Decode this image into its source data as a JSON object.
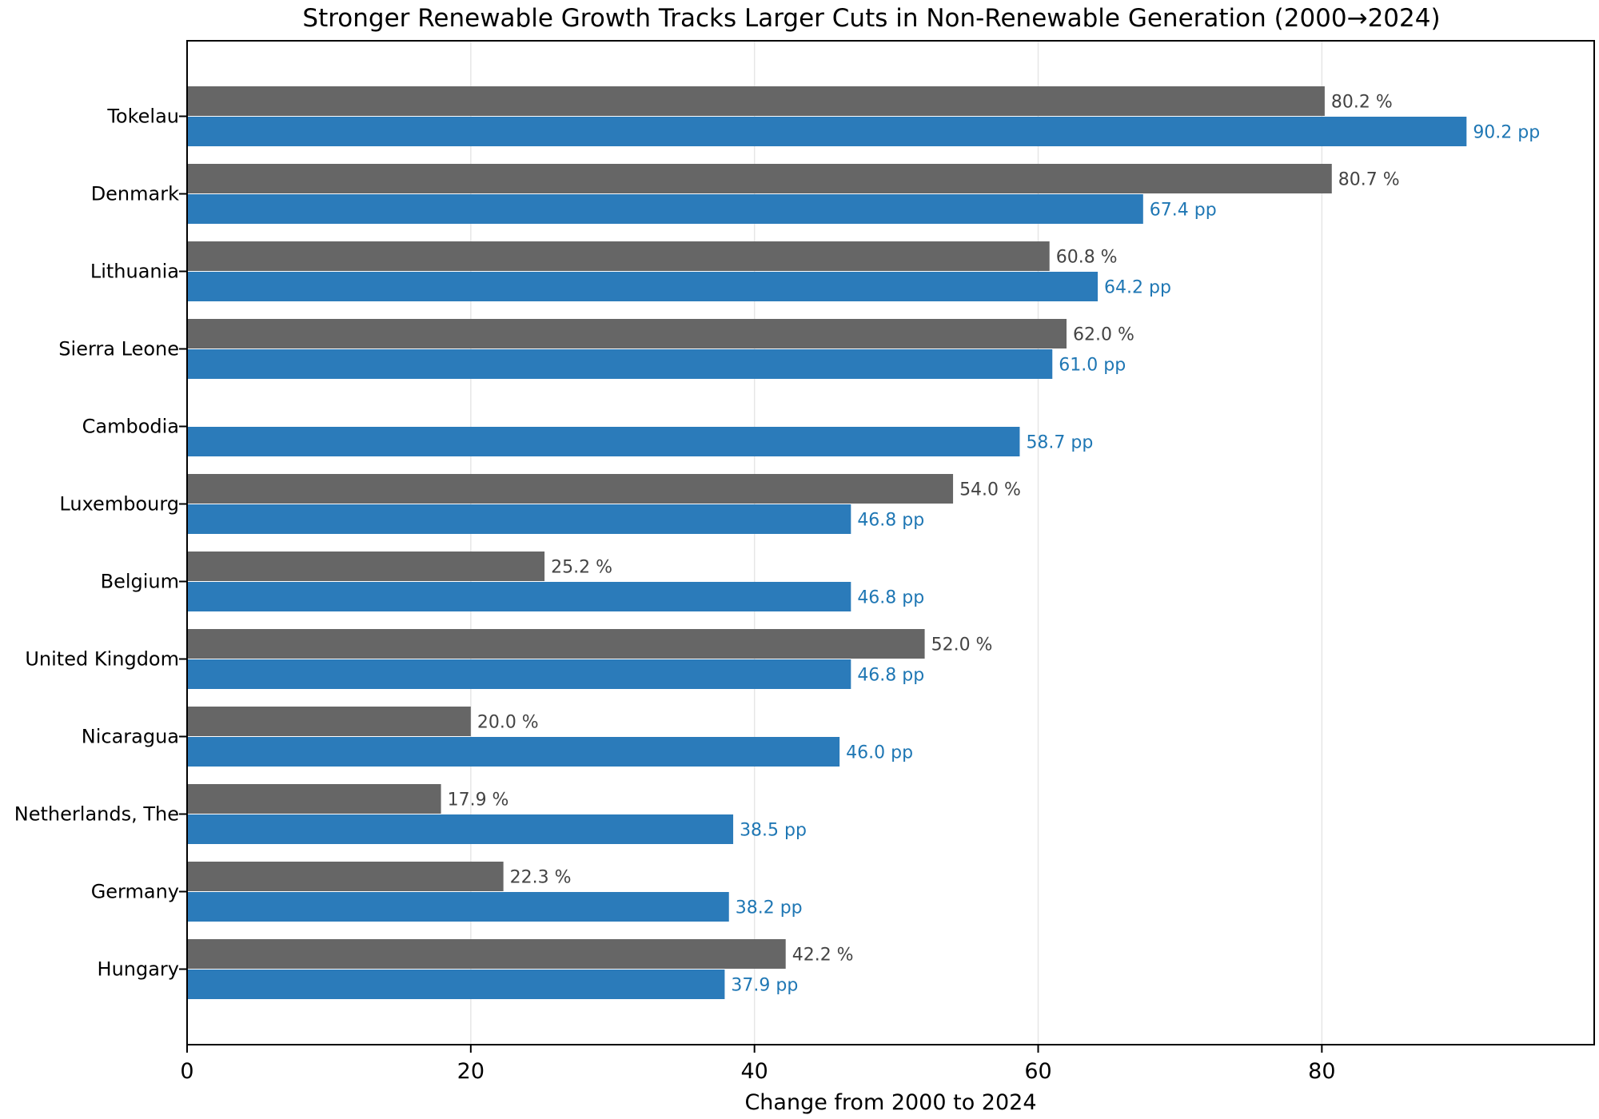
{
  "chart_data": {
    "type": "bar",
    "orientation": "horizontal",
    "title": "Stronger Renewable Growth Tracks Larger Cuts in Non-Renewable Generation (2000→2024)",
    "xlabel": "Change from 2000 to 2024",
    "ylabel": "",
    "xlim": [
      0,
      99.2
    ],
    "xticks": [
      0,
      20,
      40,
      60,
      80
    ],
    "grid": "vertical",
    "legend": "none",
    "categories": [
      "Tokelau",
      "Denmark",
      "Lithuania",
      "Sierra Leone",
      "Cambodia",
      "Luxembourg",
      "Belgium",
      "United Kingdom",
      "Nicaragua",
      "Netherlands, The",
      "Germany",
      "Hungary"
    ],
    "series": [
      {
        "unit": "%",
        "color": "#666666",
        "values": [
          80.2,
          80.7,
          60.8,
          62.0,
          null,
          54.0,
          25.2,
          52.0,
          20.0,
          17.9,
          22.3,
          42.2
        ]
      },
      {
        "unit": "pp",
        "color": "#2b7bba",
        "values": [
          90.2,
          67.4,
          64.2,
          61.0,
          58.7,
          46.8,
          46.8,
          46.8,
          46.0,
          38.5,
          38.2,
          37.9
        ]
      }
    ],
    "label_colors": {
      "grey_label": "#444444",
      "blue_label": "#1f77b4"
    }
  }
}
